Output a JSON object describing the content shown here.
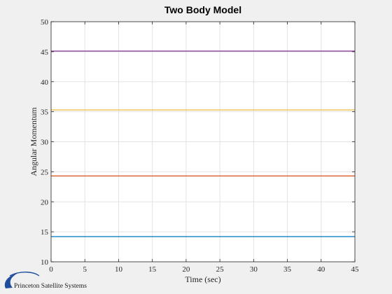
{
  "chart_data": {
    "type": "line",
    "title": "Two Body Model",
    "xlabel": "Time (sec)",
    "ylabel": "Angular Momentum",
    "xlim": [
      0,
      45
    ],
    "ylim": [
      10,
      50
    ],
    "xticks": [
      0,
      5,
      10,
      15,
      20,
      25,
      30,
      35,
      40,
      45
    ],
    "yticks": [
      10,
      15,
      20,
      25,
      30,
      35,
      40,
      45,
      50
    ],
    "grid": true,
    "x": [
      0,
      45
    ],
    "series": [
      {
        "values": [
          14.2,
          14.2
        ],
        "color": "#0072bd"
      },
      {
        "values": [
          24.3,
          24.3
        ],
        "color": "#d95319"
      },
      {
        "values": [
          35.3,
          35.3
        ],
        "color": "#edb120"
      },
      {
        "values": [
          45.1,
          45.1
        ],
        "color": "#7e2f8e"
      }
    ]
  },
  "logo": {
    "text": "Princeton Satellite Systems",
    "color": "#1f4e9c"
  }
}
